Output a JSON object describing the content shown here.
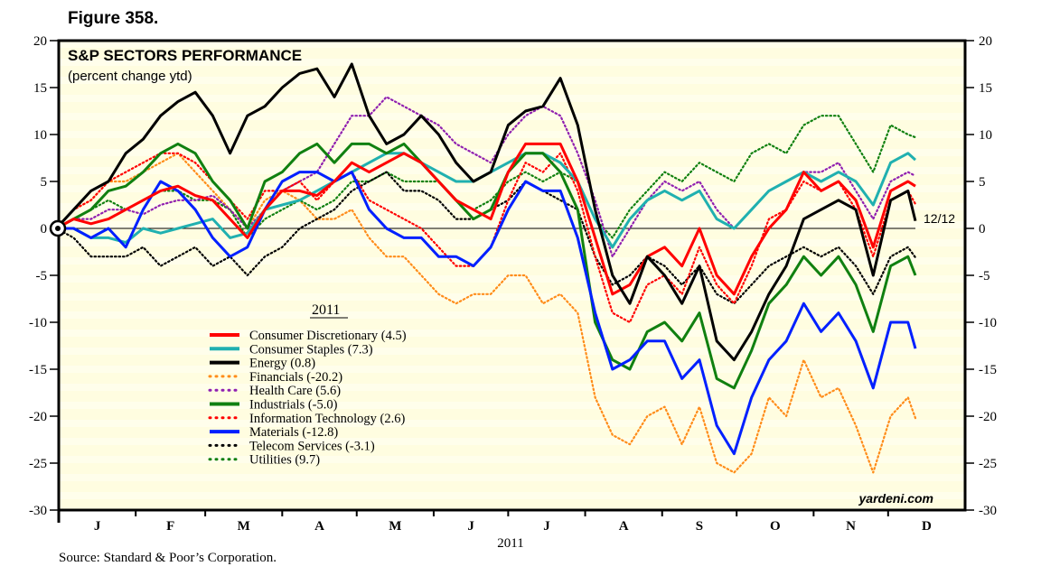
{
  "figure_label": "Figure 358.",
  "source": "Source: Standard & Poor’s Corporation.",
  "watermark": "yardeni.com",
  "chart_data": {
    "type": "line",
    "title": "S&P SECTORS PERFORMANCE",
    "subtitle": "(percent change ytd)",
    "legend_title": "2011",
    "legend_placement": "lower-left (inside plot)",
    "xlabel": "2011",
    "ylabel": "",
    "ylim": [
      -30,
      20
    ],
    "yticks": [
      20,
      15,
      10,
      5,
      0,
      -5,
      -10,
      -15,
      -20,
      -25,
      -30
    ],
    "xlim": [
      "2011-01-01",
      "2011-12-31"
    ],
    "month_labels": [
      "J",
      "F",
      "M",
      "A",
      "M",
      "J",
      "J",
      "A",
      "S",
      "O",
      "N",
      "D"
    ],
    "end_label": "12/12",
    "grid": false,
    "zero_line": true,
    "background_color": "#fffde0",
    "x": [
      "2010-12-31",
      "2011-01-07",
      "2011-01-14",
      "2011-01-21",
      "2011-01-28",
      "2011-02-04",
      "2011-02-11",
      "2011-02-18",
      "2011-02-25",
      "2011-03-04",
      "2011-03-11",
      "2011-03-18",
      "2011-03-25",
      "2011-04-01",
      "2011-04-08",
      "2011-04-15",
      "2011-04-22",
      "2011-04-29",
      "2011-05-06",
      "2011-05-13",
      "2011-05-20",
      "2011-05-27",
      "2011-06-03",
      "2011-06-10",
      "2011-06-17",
      "2011-06-24",
      "2011-07-01",
      "2011-07-08",
      "2011-07-15",
      "2011-07-22",
      "2011-07-29",
      "2011-08-05",
      "2011-08-12",
      "2011-08-19",
      "2011-08-26",
      "2011-09-02",
      "2011-09-09",
      "2011-09-16",
      "2011-09-23",
      "2011-09-30",
      "2011-10-07",
      "2011-10-14",
      "2011-10-21",
      "2011-10-28",
      "2011-11-04",
      "2011-11-11",
      "2011-11-18",
      "2011-11-25",
      "2011-12-02",
      "2011-12-09",
      "2011-12-12"
    ],
    "series": [
      {
        "name": "Consumer Discretionary (4.5)",
        "color": "#ff0000",
        "style": "solid",
        "values": [
          0,
          1,
          0.5,
          1,
          2,
          3,
          4,
          4.5,
          3.5,
          3,
          1,
          -1,
          2,
          4,
          4,
          3.5,
          5,
          7,
          6,
          7,
          8,
          7,
          5,
          3,
          2,
          1,
          6,
          9,
          9,
          9,
          5,
          -1,
          -7,
          -6,
          -3,
          -2,
          -4,
          0,
          -5,
          -7,
          -3,
          0,
          2,
          6,
          4,
          5,
          3,
          -2,
          4,
          5,
          4.5
        ]
      },
      {
        "name": "Consumer Staples (7.3)",
        "color": "#20b0b0",
        "style": "solid",
        "values": [
          0,
          0,
          -1,
          -1,
          -1.5,
          0,
          -0.5,
          0,
          0.5,
          1,
          -1,
          -0.5,
          2,
          2.5,
          3,
          4,
          5,
          6,
          7,
          8,
          8,
          7,
          6,
          5,
          5,
          6,
          7,
          8,
          8,
          7,
          5,
          1,
          -2,
          1,
          3,
          4,
          3,
          4,
          1,
          0,
          2,
          4,
          5,
          6,
          5,
          6,
          5,
          2.5,
          7,
          8,
          7.3
        ]
      },
      {
        "name": "Energy (0.8)",
        "color": "#000000",
        "style": "solid",
        "values": [
          0,
          2,
          4,
          5,
          8,
          9.5,
          12,
          13.5,
          14.5,
          12,
          8,
          12,
          13,
          15,
          16.5,
          17,
          14,
          17.5,
          12,
          9,
          10,
          12,
          10,
          7,
          5,
          6,
          11,
          12.5,
          13,
          16,
          11,
          2,
          -5,
          -8,
          -3,
          -5,
          -8,
          -4,
          -12,
          -14,
          -11,
          -7,
          -4,
          1,
          2,
          3,
          2,
          -5,
          3,
          4,
          0.8
        ]
      },
      {
        "name": "Financials (-20.2)",
        "color": "#ff8c1a",
        "style": "dotted",
        "values": [
          0,
          2,
          3,
          5,
          5,
          6,
          7,
          8,
          6,
          4,
          2,
          0,
          3,
          4,
          3,
          1,
          1,
          2,
          -1,
          -3,
          -3,
          -5,
          -7,
          -8,
          -7,
          -7,
          -5,
          -5,
          -8,
          -7,
          -9,
          -18,
          -22,
          -23,
          -20,
          -19,
          -23,
          -19,
          -25,
          -26,
          -24,
          -18,
          -20,
          -14,
          -18,
          -17,
          -21,
          -26,
          -20,
          -18,
          -20.2
        ]
      },
      {
        "name": "Health Care (5.6)",
        "color": "#9020b0",
        "style": "dotted",
        "values": [
          0,
          1,
          1,
          2,
          2,
          1.5,
          2.5,
          3,
          3,
          3.5,
          2,
          0,
          2,
          4,
          5,
          6,
          9,
          12,
          12,
          14,
          13,
          12,
          11,
          9,
          8,
          7,
          10,
          12,
          13,
          12,
          8,
          3,
          -3,
          0,
          3,
          5,
          4,
          5,
          2,
          0,
          2,
          4,
          5,
          6,
          6,
          7,
          4,
          1,
          5,
          6,
          5.6
        ]
      },
      {
        "name": "Industrials (-5.0)",
        "color": "#108010",
        "style": "solid",
        "values": [
          0,
          1,
          2,
          4,
          4.5,
          6,
          8,
          9,
          8,
          5,
          3,
          0,
          5,
          6,
          8,
          9,
          7,
          9,
          9,
          8,
          9,
          7,
          5,
          3,
          1,
          2,
          6,
          8,
          8,
          6,
          2,
          -10,
          -14,
          -15,
          -11,
          -10,
          -12,
          -9,
          -16,
          -17,
          -13,
          -8,
          -6,
          -3,
          -5,
          -3,
          -6,
          -11,
          -4,
          -3,
          -5
        ]
      },
      {
        "name": "Information Technology (2.6)",
        "color": "#ff0000",
        "style": "dotted",
        "values": [
          0,
          2,
          3,
          5,
          6,
          7,
          8,
          8,
          7,
          5,
          3,
          1,
          4,
          4,
          5,
          3,
          5,
          6,
          3,
          2,
          1,
          0,
          -2,
          -4,
          -4,
          -2,
          3,
          7,
          6,
          8,
          4,
          -3,
          -9,
          -10,
          -6,
          -5,
          -7,
          -2,
          -6,
          -8,
          -4,
          1,
          2,
          5,
          4,
          5,
          2,
          -3,
          3,
          4,
          2.6
        ]
      },
      {
        "name": "Materials (-12.8)",
        "color": "#0020ff",
        "style": "solid",
        "values": [
          0,
          0,
          -1,
          0,
          -2,
          2,
          5,
          4,
          2,
          -1,
          -3,
          -2,
          2,
          5,
          6,
          6,
          5,
          6,
          2,
          0,
          -1,
          -1,
          -3,
          -3,
          -4,
          -2,
          2,
          5,
          4,
          4,
          -1,
          -9,
          -15,
          -14,
          -12,
          -12,
          -16,
          -14,
          -21,
          -24,
          -18,
          -14,
          -12,
          -8,
          -11,
          -9,
          -12,
          -17,
          -10,
          -10,
          -12.8
        ]
      },
      {
        "name": "Telecom Services (-3.1)",
        "color": "#000000",
        "style": "dotted",
        "values": [
          0,
          -1,
          -3,
          -3,
          -3,
          -2,
          -4,
          -3,
          -2,
          -4,
          -3,
          -5,
          -3,
          -2,
          0,
          1,
          2,
          4,
          5,
          6,
          4,
          4,
          3,
          1,
          1,
          2,
          3,
          5,
          4,
          3,
          2,
          -3,
          -6,
          -5,
          -3,
          -4,
          -6,
          -4,
          -7,
          -8,
          -6,
          -4,
          -3,
          -2,
          -3,
          -2,
          -4,
          -7,
          -3,
          -2,
          -3.1
        ]
      },
      {
        "name": "Utilities (9.7)",
        "color": "#108010",
        "style": "dotted",
        "values": [
          0,
          1,
          2,
          3,
          2,
          3,
          4,
          4,
          3,
          3,
          2,
          -1,
          1,
          2,
          3,
          2,
          3,
          5,
          5,
          6,
          5,
          5,
          5,
          3,
          2,
          3,
          5,
          6,
          5,
          6,
          5,
          1,
          -1,
          2,
          4,
          6,
          5,
          7,
          6,
          5,
          8,
          9,
          8,
          11,
          12,
          12,
          9,
          6,
          11,
          10,
          9.7
        ]
      }
    ]
  }
}
